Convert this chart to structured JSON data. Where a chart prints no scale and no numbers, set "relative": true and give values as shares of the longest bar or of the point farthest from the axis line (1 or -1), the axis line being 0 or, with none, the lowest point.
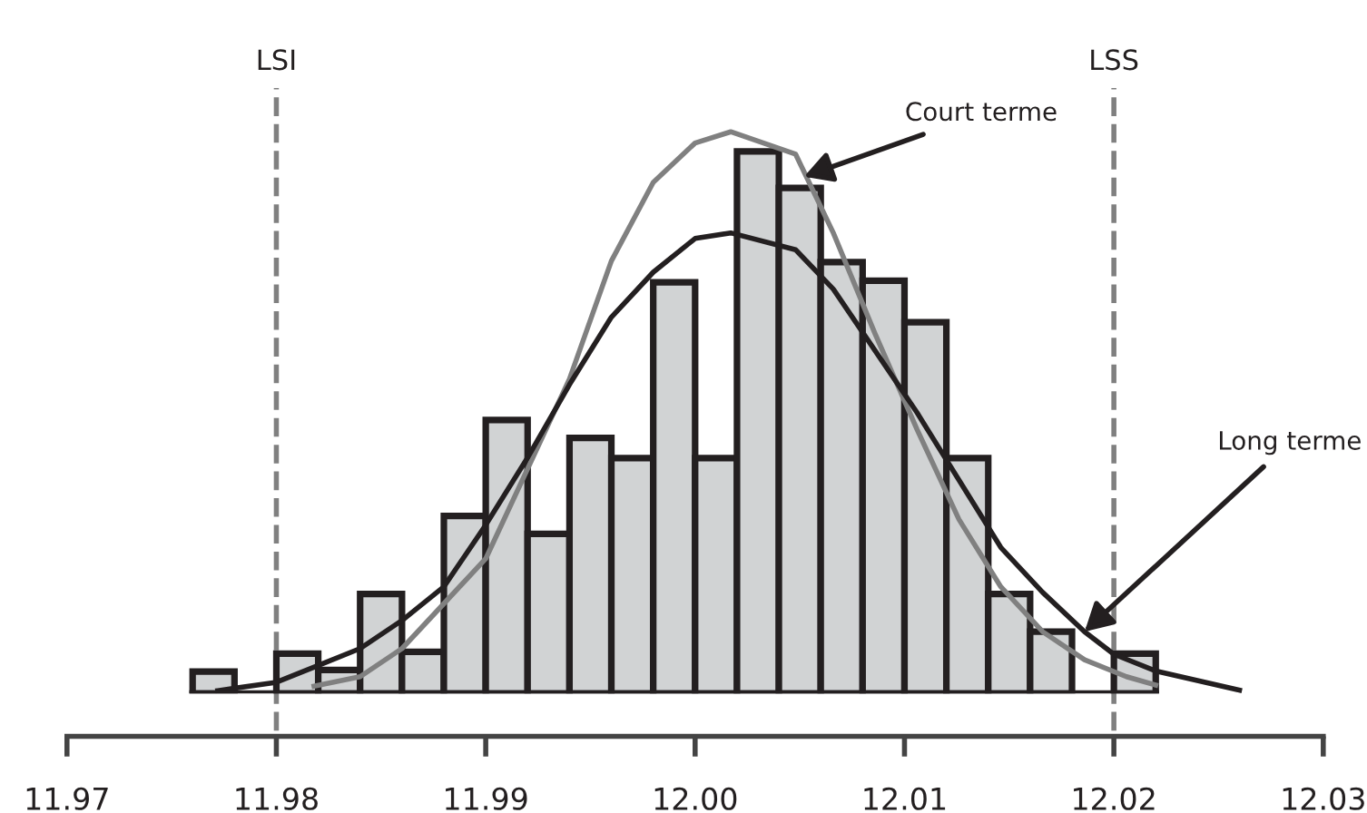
{
  "chart_data": {
    "type": "histogram",
    "relative": true,
    "xlim": [
      11.97,
      12.03
    ],
    "xticks": [
      11.97,
      11.98,
      11.99,
      {
        "value": 12.0,
        "label": "12.00"
      },
      12.01,
      12.02,
      12.03
    ],
    "tick_labels": "x",
    "color": "#d1d3d4",
    "bins": [
      11.976,
      11.978,
      11.98,
      11.982,
      11.984,
      11.986,
      11.988,
      11.99,
      11.992,
      11.994,
      11.996,
      11.998,
      12.0,
      12.002,
      12.004,
      12.006,
      12.008,
      12.01,
      12.012,
      12.014,
      12.016,
      12.018,
      12.02,
      12.022
    ],
    "values": [
      0.039,
      null,
      0.071,
      0.042,
      0.177,
      0.074,
      0.316,
      0.487,
      0.284,
      0.455,
      0.419,
      0.732,
      0.419,
      0.965,
      0.9,
      0.768,
      0.735,
      0.661,
      0.419,
      0.177,
      0.11,
      0,
      0.071
    ],
    "series": [
      {
        "type": "line",
        "color": "#808080",
        "x": [
          11.9818,
          11.984,
          11.986,
          11.988,
          11.99,
          11.992,
          11.994,
          11.996,
          11.998,
          12.0,
          12.0017,
          12.0048,
          12.0066,
          12.0086,
          12.0106,
          12.0126,
          12.0146,
          12.0166,
          12.0186,
          12.0206,
          12.022
        ],
        "values": [
          0.013,
          0.03,
          0.08,
          0.16,
          0.24,
          0.4,
          0.56,
          0.77,
          0.91,
          0.98,
          1.0,
          0.96,
          0.82,
          0.64,
          0.47,
          0.31,
          0.19,
          0.11,
          0.06,
          0.03,
          0.015
        ]
      },
      {
        "type": "line",
        "color": "#231f20",
        "x": [
          11.9772,
          11.98,
          11.982,
          11.984,
          11.986,
          11.988,
          11.99,
          11.992,
          11.994,
          11.996,
          11.998,
          12.0,
          12.0017,
          12.0048,
          12.0066,
          12.0086,
          12.0106,
          12.0126,
          12.0146,
          12.0166,
          12.0186,
          12.02,
          12.022,
          12.026
        ],
        "values": [
          0.005,
          0.02,
          0.05,
          0.08,
          0.13,
          0.19,
          0.3,
          0.42,
          0.55,
          0.67,
          0.75,
          0.81,
          0.82,
          0.79,
          0.72,
          0.61,
          0.5,
          0.38,
          0.26,
          0.18,
          0.11,
          0.07,
          0.04,
          0.006
        ]
      }
    ],
    "ref_lines": [
      {
        "axis": "x",
        "value": 11.98,
        "label": "LSI",
        "color": "#808080",
        "line_style": "dashed"
      },
      {
        "axis": "x",
        "value": 12.02,
        "label": "LSS",
        "color": "#808080",
        "line_style": "dashed"
      }
    ],
    "annotations": [
      {
        "text": "Court terme",
        "x": 12.0052,
        "y": 0.92
      },
      {
        "text": "Long terme",
        "x": 12.0186,
        "y": 0.11
      }
    ]
  }
}
